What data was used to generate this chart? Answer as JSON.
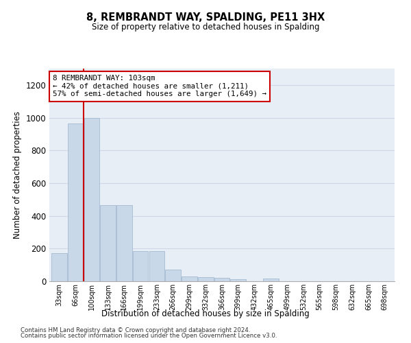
{
  "title": "8, REMBRANDT WAY, SPALDING, PE11 3HX",
  "subtitle": "Size of property relative to detached houses in Spalding",
  "xlabel": "Distribution of detached houses by size in Spalding",
  "ylabel": "Number of detached properties",
  "bar_color": "#c8d8e8",
  "bar_edge_color": "#9ab4cc",
  "categories": [
    "33sqm",
    "66sqm",
    "100sqm",
    "133sqm",
    "166sqm",
    "199sqm",
    "233sqm",
    "266sqm",
    "299sqm",
    "332sqm",
    "366sqm",
    "399sqm",
    "432sqm",
    "465sqm",
    "499sqm",
    "532sqm",
    "565sqm",
    "598sqm",
    "632sqm",
    "665sqm",
    "698sqm"
  ],
  "values": [
    170,
    965,
    1000,
    465,
    465,
    185,
    185,
    70,
    30,
    25,
    20,
    13,
    0,
    15,
    0,
    0,
    0,
    0,
    0,
    0,
    0
  ],
  "ylim": [
    0,
    1300
  ],
  "yticks": [
    0,
    200,
    400,
    600,
    800,
    1000,
    1200
  ],
  "property_line_idx": 1.5,
  "annotation_title": "8 REMBRANDT WAY: 103sqm",
  "annotation_line1": "← 42% of detached houses are smaller (1,211)",
  "annotation_line2": "57% of semi-detached houses are larger (1,649) →",
  "annotation_box_color": "#ffffff",
  "annotation_box_edge_color": "#cc0000",
  "grid_color": "#d0d8e8",
  "background_color": "#e8eef5",
  "footer1": "Contains HM Land Registry data © Crown copyright and database right 2024.",
  "footer2": "Contains public sector information licensed under the Open Government Licence v3.0."
}
